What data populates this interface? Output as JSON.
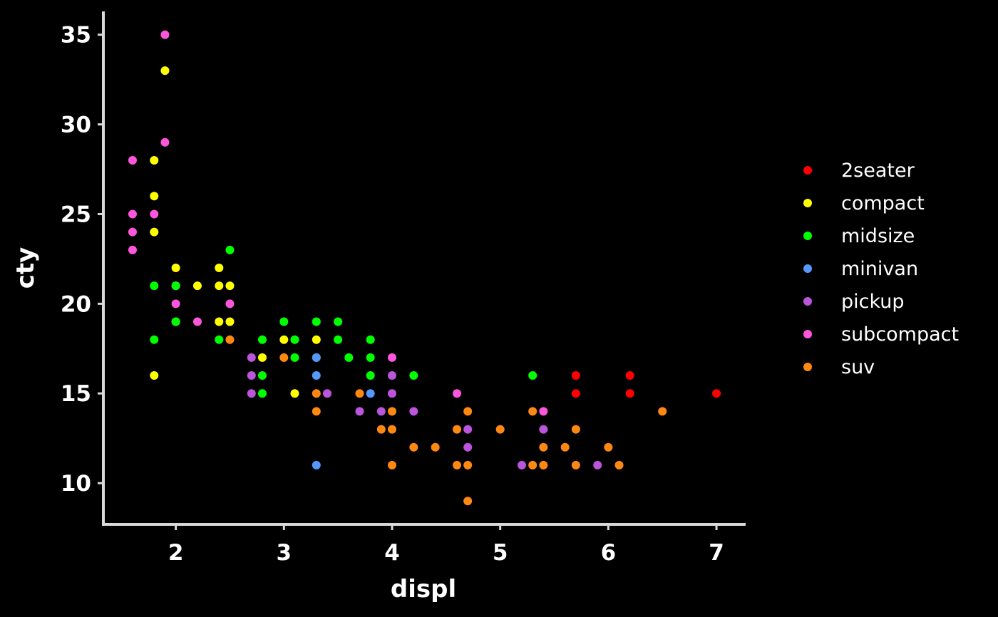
{
  "chart_data": {
    "type": "scatter",
    "xlabel": "displ",
    "ylabel": "cty",
    "xlim": [
      1.33,
      7.27
    ],
    "ylim": [
      7.7,
      36.3
    ],
    "xticks": [
      2,
      3,
      4,
      5,
      6,
      7
    ],
    "yticks": [
      10,
      15,
      20,
      25,
      30,
      35
    ],
    "grid": false,
    "legend_position": "right",
    "series": [
      {
        "name": "2seater",
        "color": "#ff0000",
        "points": [
          [
            5.7,
            16
          ],
          [
            5.7,
            15
          ],
          [
            6.2,
            16
          ],
          [
            6.2,
            15
          ],
          [
            7.0,
            15
          ]
        ]
      },
      {
        "name": "compact",
        "color": "#ffff00",
        "points": [
          [
            1.8,
            28
          ],
          [
            1.8,
            26
          ],
          [
            1.8,
            24
          ],
          [
            1.8,
            16
          ],
          [
            1.9,
            33
          ],
          [
            2.0,
            22
          ],
          [
            2.0,
            21
          ],
          [
            2.0,
            19
          ],
          [
            2.2,
            21
          ],
          [
            2.4,
            22
          ],
          [
            2.4,
            21
          ],
          [
            2.4,
            19
          ],
          [
            2.5,
            21
          ],
          [
            2.5,
            19
          ],
          [
            2.8,
            17
          ],
          [
            3.0,
            18
          ],
          [
            3.1,
            15
          ],
          [
            3.3,
            18
          ]
        ]
      },
      {
        "name": "midsize",
        "color": "#00ff00",
        "points": [
          [
            1.8,
            21
          ],
          [
            1.8,
            18
          ],
          [
            2.0,
            21
          ],
          [
            2.0,
            19
          ],
          [
            2.4,
            18
          ],
          [
            2.5,
            23
          ],
          [
            2.8,
            18
          ],
          [
            2.8,
            16
          ],
          [
            2.8,
            15
          ],
          [
            3.0,
            19
          ],
          [
            3.1,
            18
          ],
          [
            3.1,
            17
          ],
          [
            3.3,
            19
          ],
          [
            3.3,
            17
          ],
          [
            3.5,
            19
          ],
          [
            3.5,
            18
          ],
          [
            3.6,
            17
          ],
          [
            3.8,
            18
          ],
          [
            3.8,
            17
          ],
          [
            3.8,
            16
          ],
          [
            4.2,
            16
          ],
          [
            5.3,
            16
          ]
        ]
      },
      {
        "name": "minivan",
        "color": "#5599ff",
        "points": [
          [
            3.3,
            17
          ],
          [
            3.3,
            16
          ],
          [
            3.3,
            11
          ],
          [
            3.8,
            15
          ]
        ]
      },
      {
        "name": "pickup",
        "color": "#bb55dd",
        "points": [
          [
            2.7,
            17
          ],
          [
            2.7,
            16
          ],
          [
            2.7,
            15
          ],
          [
            3.4,
            15
          ],
          [
            3.7,
            14
          ],
          [
            3.9,
            14
          ],
          [
            4.0,
            16
          ],
          [
            4.0,
            15
          ],
          [
            4.2,
            14
          ],
          [
            4.7,
            13
          ],
          [
            4.7,
            12
          ],
          [
            5.2,
            11
          ],
          [
            5.4,
            13
          ],
          [
            5.9,
            11
          ]
        ]
      },
      {
        "name": "subcompact",
        "color": "#ff55dd",
        "points": [
          [
            1.6,
            28
          ],
          [
            1.6,
            25
          ],
          [
            1.6,
            24
          ],
          [
            1.6,
            23
          ],
          [
            1.8,
            25
          ],
          [
            1.9,
            35
          ],
          [
            1.9,
            29
          ],
          [
            2.0,
            20
          ],
          [
            2.2,
            19
          ],
          [
            2.5,
            20
          ],
          [
            4.0,
            17
          ],
          [
            4.6,
            15
          ],
          [
            5.4,
            14
          ]
        ]
      },
      {
        "name": "suv",
        "color": "#ff8811",
        "points": [
          [
            2.5,
            18
          ],
          [
            3.0,
            17
          ],
          [
            3.3,
            15
          ],
          [
            3.3,
            14
          ],
          [
            3.7,
            15
          ],
          [
            3.9,
            13
          ],
          [
            4.0,
            14
          ],
          [
            4.0,
            13
          ],
          [
            4.0,
            11
          ],
          [
            4.2,
            12
          ],
          [
            4.4,
            12
          ],
          [
            4.6,
            13
          ],
          [
            4.6,
            11
          ],
          [
            4.7,
            14
          ],
          [
            4.7,
            11
          ],
          [
            4.7,
            9
          ],
          [
            5.0,
            13
          ],
          [
            5.3,
            14
          ],
          [
            5.3,
            11
          ],
          [
            5.4,
            12
          ],
          [
            5.4,
            11
          ],
          [
            5.6,
            12
          ],
          [
            5.7,
            13
          ],
          [
            5.7,
            11
          ],
          [
            6.0,
            12
          ],
          [
            6.1,
            11
          ],
          [
            6.5,
            14
          ]
        ]
      }
    ]
  }
}
